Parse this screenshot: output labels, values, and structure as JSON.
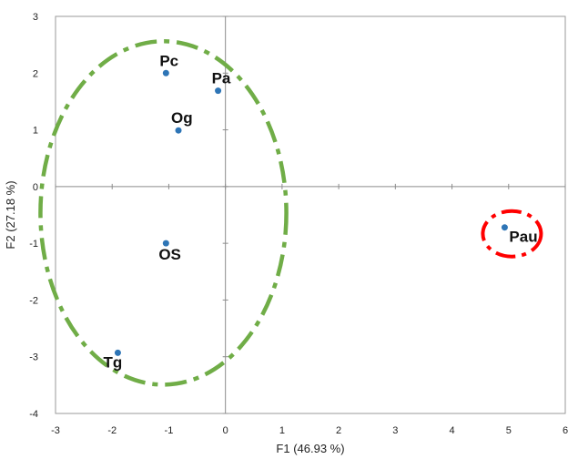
{
  "chart_data": {
    "type": "scatter",
    "title": "",
    "xlabel": "F1 (46.93 %)",
    "ylabel": "F2 (27.18 %)",
    "xlim": [
      -3,
      6
    ],
    "ylim": [
      -4,
      3
    ],
    "x_ticks": [
      "-3",
      "-2",
      "-1",
      "0",
      "1",
      "2",
      "3",
      "4",
      "5",
      "6"
    ],
    "y_ticks": [
      "-4",
      "-3",
      "-2",
      "-1",
      "0",
      "1",
      "2",
      "3"
    ],
    "grid": false,
    "point_color": "#2e75b6",
    "points": [
      {
        "label": "Pc",
        "x": -1.05,
        "y": 2.0
      },
      {
        "label": "Pa",
        "x": -0.13,
        "y": 1.69
      },
      {
        "label": "Og",
        "x": -0.83,
        "y": 0.99
      },
      {
        "label": "OS",
        "x": -1.05,
        "y": -1.0
      },
      {
        "label": "Tg",
        "x": -1.9,
        "y": -2.93
      },
      {
        "label": "Pau",
        "x": 4.93,
        "y": -0.72
      }
    ],
    "groups": [
      {
        "members": [
          "Pc",
          "Pa",
          "Og",
          "OS",
          "Tg"
        ],
        "color": "#70ad47",
        "style": "dash-dot ellipse"
      },
      {
        "members": [
          "Pau"
        ],
        "color": "#ff0000",
        "style": "dash-dot ellipse"
      }
    ]
  }
}
